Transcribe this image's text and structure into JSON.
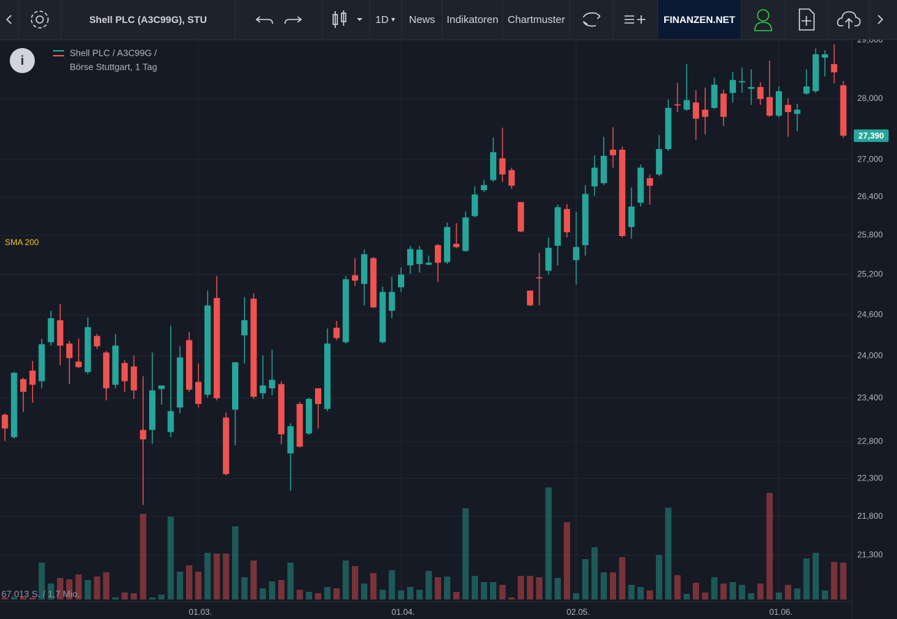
{
  "toolbar": {
    "title": "Shell PLC (A3C99G), STU",
    "interval": "1D",
    "news": "News",
    "indicators": "Indikatoren",
    "patterns": "Chartmuster",
    "brand": "FINANZEN.NET"
  },
  "chart_data": {
    "type": "candlestick",
    "legend": [
      "Shell PLC / A3C99G /",
      "Börse Stuttgart, 1 Tag"
    ],
    "indicator_label": "SMA 200",
    "volume_label": "67.013 S. / 1,7 Mio.",
    "up_color": "#26a69a",
    "down_color": "#ef5350",
    "log_scale": true,
    "grid": true,
    "last_price": {
      "value": 27.39,
      "label": "27,390"
    },
    "ylim": [
      20.74,
      29.0
    ],
    "yticks": [
      {
        "value": 29,
        "label": "29,000"
      },
      {
        "value": 28,
        "label": "28,000"
      },
      {
        "value": 27,
        "label": "27,000"
      },
      {
        "value": 26.4,
        "label": "26,400"
      },
      {
        "value": 25.8,
        "label": "25,800"
      },
      {
        "value": 25.2,
        "label": "25,200"
      },
      {
        "value": 24.6,
        "label": "24,600"
      },
      {
        "value": 24,
        "label": "24,000"
      },
      {
        "value": 23.4,
        "label": "23,400"
      },
      {
        "value": 22.8,
        "label": "22,800"
      },
      {
        "value": 22.3,
        "label": "22,300"
      },
      {
        "value": 21.8,
        "label": "21,800"
      },
      {
        "value": 21.3,
        "label": "21,300"
      }
    ],
    "categories": [
      null,
      null,
      null,
      null,
      null,
      null,
      null,
      null,
      null,
      null,
      null,
      null,
      null,
      null,
      null,
      null,
      null,
      null,
      null,
      null,
      null,
      "01.03.",
      null,
      null,
      null,
      null,
      null,
      null,
      null,
      null,
      null,
      null,
      null,
      null,
      null,
      null,
      null,
      null,
      null,
      null,
      null,
      null,
      null,
      "01.04.",
      null,
      null,
      null,
      null,
      null,
      null,
      null,
      null,
      null,
      null,
      null,
      null,
      null,
      null,
      null,
      null,
      null,
      null,
      "02.05.",
      null,
      null,
      null,
      null,
      null,
      null,
      null,
      null,
      null,
      null,
      null,
      null,
      null,
      null,
      null,
      null,
      null,
      null,
      null,
      null,
      null,
      "01.06.",
      null,
      null,
      null,
      null,
      null,
      null,
      null
    ],
    "open": [
      23.17,
      22.86,
      23.67,
      23.79,
      23.64,
      24.2,
      24.52,
      24.18,
      23.92,
      23.77,
      24.29,
      24.05,
      23.59,
      23.9,
      23.85,
      22.96,
      22.96,
      23.53,
      22.93,
      23.27,
      24.23,
      23.63,
      23.45,
      24.85,
      23.13,
      23.24,
      24.3,
      24.84,
      23.47,
      23.54,
      23.6,
      22.64,
      23.32,
      22.91,
      23.54,
      23.25,
      24.41,
      24.2,
      25.19,
      25.06,
      25.45,
      24.2,
      24.66,
      25.01,
      25.34,
      25.36,
      25.35,
      25.65,
      25.39,
      25.67,
      25.56,
      26.1,
      26.51,
      26.67,
      27.02,
      26.83,
      26.32,
      24.96,
      25.16,
      25.26,
      25.64,
      26.21,
      25.42,
      25.65,
      26.57,
      26.62,
      27.16,
      27.16,
      25.93,
      26.31,
      26.7,
      26.76,
      27.17,
      27.91,
      27.82,
      27.94,
      27.82,
      27.85,
      28.09,
      28.1,
      28.28,
      28.17,
      28.2,
      28.03,
      27.72,
      27.9,
      27.75,
      28.09,
      28.13,
      28.7,
      28.59,
      28.23
    ],
    "high": [
      23.19,
      23.77,
      23.69,
      23.93,
      24.25,
      24.66,
      24.76,
      24.22,
      24.25,
      24.56,
      24.32,
      24.07,
      24.32,
      23.94,
      24.01,
      23.71,
      24.05,
      23.58,
      24.44,
      24.14,
      24.35,
      23.89,
      24.96,
      25.18,
      23.2,
      23.91,
      24.86,
      24.92,
      24.01,
      24.09,
      23.64,
      23.05,
      23.35,
      23.41,
      23.54,
      24.4,
      24.51,
      25.18,
      25.45,
      25.58,
      25.47,
      25.02,
      25.17,
      25.31,
      25.64,
      25.64,
      25.49,
      25.67,
      26.0,
      25.99,
      26.17,
      26.57,
      26.67,
      27.36,
      27.52,
      26.87,
      26.32,
      24.96,
      25.53,
      25.77,
      26.28,
      26.29,
      26.17,
      26.59,
      27.07,
      27.37,
      27.53,
      27.21,
      26.55,
      26.92,
      26.76,
      27.4,
      27.99,
      28.27,
      28.59,
      28.15,
      28.19,
      28.36,
      28.16,
      28.46,
      28.53,
      28.5,
      28.28,
      28.65,
      28.21,
      28.01,
      27.92,
      28.5,
      28.86,
      28.83,
      28.93,
      28.3
    ],
    "low": [
      22.81,
      22.84,
      23.21,
      23.34,
      23.54,
      24.15,
      23.87,
      23.6,
      23.83,
      23.74,
      24.1,
      23.37,
      23.54,
      23.49,
      23.39,
      21.95,
      22.77,
      23.31,
      22.86,
      23.19,
      23.49,
      23.27,
      23.41,
      23.37,
      22.34,
      22.75,
      23.89,
      23.39,
      23.39,
      23.44,
      22.76,
      22.14,
      22.72,
      22.89,
      22.98,
      23.22,
      24.23,
      24.18,
      25.03,
      24.74,
      24.7,
      24.18,
      24.55,
      24.94,
      25.21,
      25.23,
      25.34,
      25.09,
      25.36,
      25.6,
      25.55,
      26.08,
      26.48,
      26.64,
      26.64,
      26.53,
      25.85,
      24.73,
      24.74,
      25.2,
      25.34,
      25.77,
      25.05,
      25.49,
      26.42,
      26.59,
      26.87,
      25.77,
      25.75,
      26.25,
      26.28,
      26.73,
      27.14,
      27.78,
      27.8,
      27.32,
      27.41,
      27.83,
      27.55,
      27.94,
      28.1,
      27.9,
      27.9,
      27.7,
      27.69,
      27.37,
      27.46,
      28.07,
      28.1,
      28.38,
      28.26,
      27.35
    ],
    "close": [
      22.98,
      23.76,
      23.49,
      23.59,
      24.17,
      24.55,
      24.15,
      23.97,
      23.84,
      24.42,
      24.14,
      23.54,
      24.15,
      23.64,
      23.51,
      22.83,
      23.51,
      23.58,
      23.22,
      23.98,
      23.52,
      23.32,
      24.74,
      23.4,
      22.36,
      23.91,
      24.52,
      23.42,
      23.58,
      23.66,
      22.9,
      23.01,
      22.73,
      23.39,
      23.32,
      24.18,
      24.26,
      25.13,
      25.11,
      25.51,
      24.71,
      24.94,
      24.94,
      25.2,
      25.59,
      25.58,
      25.38,
      25.38,
      25.93,
      25.62,
      26.08,
      26.44,
      26.59,
      27.12,
      26.76,
      26.58,
      25.86,
      24.74,
      25.15,
      25.61,
      26.24,
      25.85,
      25.62,
      26.45,
      26.87,
      27.06,
      27.07,
      25.79,
      26.25,
      26.87,
      26.58,
      27.17,
      27.85,
      27.89,
      27.98,
      27.67,
      27.7,
      28.24,
      27.7,
      28.32,
      28.3,
      28.2,
      28.0,
      27.72,
      28.13,
      27.78,
      27.82,
      28.21,
      28.76,
      28.76,
      28.45,
      27.39
    ],
    "volume": [
      3900,
      3900,
      3900,
      3900,
      68900,
      29900,
      40300,
      37700,
      46800,
      36400,
      42900,
      50700,
      3900,
      13000,
      11700,
      159900,
      3900,
      9100,
      154700,
      52000,
      63700,
      52000,
      87100,
      85800,
      85800,
      136500,
      41600,
      72800,
      20800,
      33800,
      36400,
      68900,
      18200,
      14300,
      11700,
      23400,
      20800,
      72800,
      62400,
      29900,
      49400,
      18200,
      54600,
      16900,
      23400,
      18200,
      53300,
      41600,
      42900,
      14300,
      170300,
      44200,
      32500,
      32500,
      27300,
      3900,
      44200,
      44200,
      41600,
      209300,
      40300,
      144300,
      11700,
      75400,
      97500,
      50700,
      50700,
      79300,
      27300,
      23400,
      16900,
      83200,
      171600,
      45500,
      10400,
      31200,
      13000,
      41600,
      29900,
      32500,
      27300,
      11700,
      29900,
      198900,
      13000,
      27300,
      20800,
      76700,
      87100,
      16900,
      70200,
      68900
    ]
  }
}
